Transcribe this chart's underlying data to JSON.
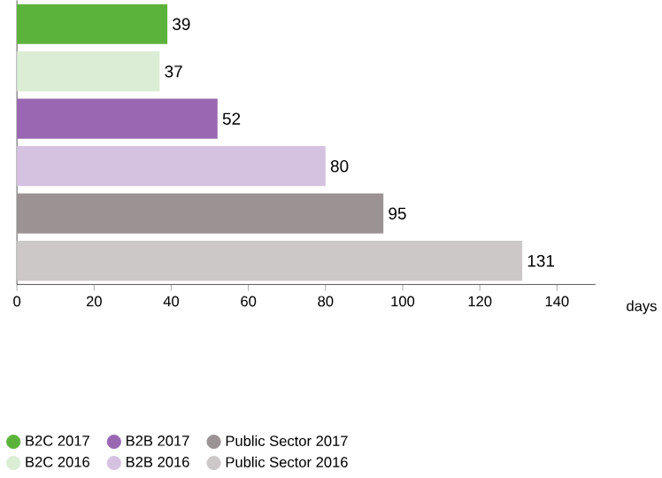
{
  "chart_data": {
    "type": "bar",
    "orientation": "horizontal",
    "xlabel": "days",
    "categories": [
      null,
      null,
      null,
      null,
      null,
      null
    ],
    "series": [
      {
        "name": "B2C 2017",
        "color": "#5cb33c",
        "values": [
          39,
          null,
          null,
          null,
          null,
          null
        ]
      },
      {
        "name": "B2C 2016",
        "color": "#dcedd5",
        "values": [
          null,
          37,
          null,
          null,
          null,
          null
        ]
      },
      {
        "name": "B2B 2017",
        "color": "#9a68b3",
        "values": [
          null,
          null,
          52,
          null,
          null,
          null
        ]
      },
      {
        "name": "B2B 2016",
        "color": "#d5c2e0",
        "values": [
          null,
          null,
          null,
          80,
          null,
          null
        ]
      },
      {
        "name": "Public Sector 2017",
        "color": "#9b9393",
        "values": [
          null,
          null,
          null,
          null,
          95,
          null
        ]
      },
      {
        "name": "Public Sector 2016",
        "color": "#cdc8c8",
        "values": [
          null,
          null,
          null,
          null,
          null,
          131
        ]
      }
    ],
    "xlim": [
      0,
      150
    ],
    "xticks": [
      0,
      20,
      40,
      60,
      80,
      100,
      120,
      140
    ],
    "data_labels": true,
    "grid": false,
    "legend": "bottom",
    "marker": "circle"
  }
}
